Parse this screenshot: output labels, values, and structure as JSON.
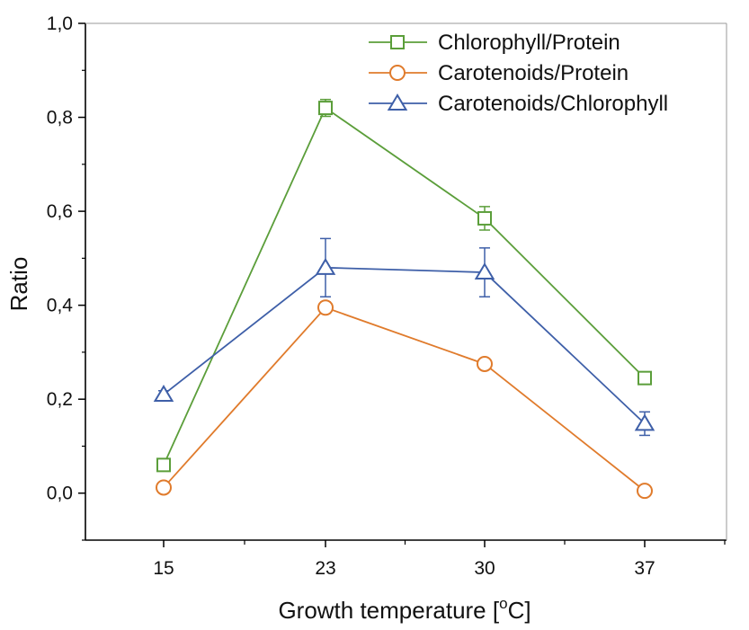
{
  "chart_data": {
    "type": "line",
    "title": "",
    "xlabel": "Growth temperature [°C]",
    "xlabel_main": "Growth temperature [",
    "xlabel_sup": "o",
    "xlabel_end": "C]",
    "ylabel": "Ratio",
    "categories": [
      "15",
      "23",
      "30",
      "37"
    ],
    "ylim": [
      -0.1,
      1.0
    ],
    "yticks": [
      0.0,
      0.2,
      0.4,
      0.6,
      0.8,
      1.0
    ],
    "ytick_labels": [
      "0,0",
      "0,2",
      "0,4",
      "0,6",
      "0,8",
      "1,0"
    ],
    "legend_position": "top-right",
    "grid": false,
    "series": [
      {
        "name": "Chlorophyll/Protein",
        "marker": "square",
        "color": "#5b9e3a",
        "values": [
          0.06,
          0.82,
          0.585,
          0.245
        ],
        "errors": [
          0.012,
          0.018,
          0.025,
          0.012
        ]
      },
      {
        "name": "Carotenoids/Protein",
        "marker": "circle",
        "color": "#e07b2c",
        "values": [
          0.012,
          0.395,
          0.275,
          0.005
        ],
        "errors": [
          0.008,
          0.012,
          0.01,
          0.008
        ]
      },
      {
        "name": "Carotenoids/Chlorophyll",
        "marker": "triangle",
        "color": "#3e5fa8",
        "values": [
          0.21,
          0.48,
          0.47,
          0.148
        ],
        "errors": [
          0.008,
          0.062,
          0.052,
          0.025
        ]
      }
    ]
  }
}
